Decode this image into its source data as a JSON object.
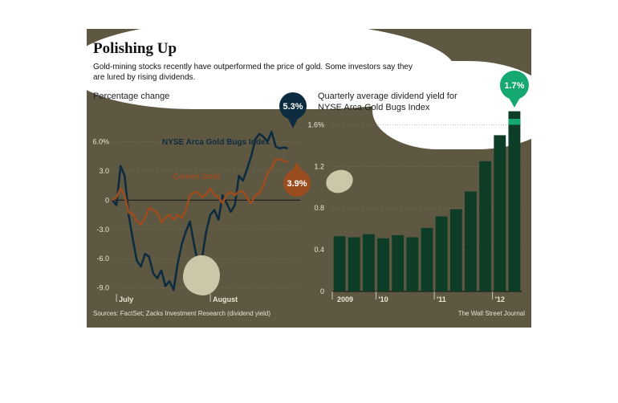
{
  "title": "Polishing Up",
  "subtitle_line1": "Gold-mining stocks recently have outperformed the price of gold. Some investors say they",
  "subtitle_line2": "are lured by rising dividends.",
  "source": "Sources: FactSet; Zacks Investment Research (dividend yield)",
  "credit": "The Wall Street Journal",
  "colors": {
    "background": "#5e5843",
    "gold_bugs": "#0e2c3f",
    "comex_gold": "#9c4d1f",
    "bars": "#0d3d27",
    "highlight_bar": "#15a870",
    "text_light": "#e8e3d0"
  },
  "chart_data": [
    {
      "type": "line",
      "ylabel": "Percentage change",
      "ylim": [
        -9.6,
        8.5
      ],
      "yticks": [
        6.0,
        3.0,
        0,
        -3.0,
        -6.0,
        -9.0
      ],
      "ytick_labels": [
        "6.0%",
        "3.0",
        "0",
        "-3.0",
        "-6.0",
        "-9.0"
      ],
      "xtick_labels": [
        "July",
        "August"
      ],
      "xtick_positions": [
        1,
        24
      ],
      "xlim": [
        0,
        46
      ],
      "series": [
        {
          "name": "NYSE Arca Gold Bugs Index",
          "end_label": "5.3%",
          "x": [
            0,
            1,
            2,
            3,
            4,
            5,
            6,
            7,
            8,
            9,
            10,
            11,
            12,
            13,
            14,
            15,
            16,
            17,
            18,
            19,
            20,
            21,
            22,
            23,
            24,
            25,
            26,
            27,
            28,
            29,
            30,
            31,
            32,
            33,
            34,
            35,
            36,
            37,
            38,
            39,
            40,
            41,
            42,
            43
          ],
          "values": [
            0.0,
            -0.5,
            3.5,
            2.5,
            -1.5,
            -4.0,
            -6.2,
            -6.8,
            -5.5,
            -5.8,
            -7.5,
            -8.0,
            -7.2,
            -8.8,
            -8.3,
            -9.2,
            -6.5,
            -4.5,
            -3.2,
            -2.2,
            -4.5,
            -6.5,
            -5.8,
            -3.2,
            -1.5,
            -1.0,
            -2.0,
            0.5,
            -0.3,
            -1.2,
            -0.5,
            2.5,
            2.0,
            3.2,
            4.5,
            6.2,
            6.8,
            6.5,
            6.0,
            7.0,
            5.5,
            5.3,
            5.4,
            5.3
          ]
        },
        {
          "name": "Comex Gold",
          "end_label": "3.9%",
          "x": [
            0,
            1,
            2,
            3,
            4,
            5,
            6,
            7,
            8,
            9,
            10,
            11,
            12,
            13,
            14,
            15,
            16,
            17,
            18,
            19,
            20,
            21,
            22,
            23,
            24,
            25,
            26,
            27,
            28,
            29,
            30,
            31,
            32,
            33,
            34,
            35,
            36,
            37,
            38,
            39,
            40,
            41,
            42,
            43
          ],
          "values": [
            0.0,
            0.3,
            1.2,
            0.5,
            -1.3,
            -1.4,
            -2.2,
            -2.5,
            -1.8,
            -0.8,
            -1.0,
            -1.3,
            -2.3,
            -1.8,
            -1.5,
            -2.0,
            -1.5,
            -1.8,
            -1.0,
            0.5,
            0.8,
            0.8,
            0.3,
            0.6,
            1.2,
            0.5,
            0.3,
            -0.3,
            0.6,
            0.8,
            0.5,
            0.9,
            0.9,
            0.2,
            -0.3,
            0.5,
            0.7,
            1.5,
            2.8,
            3.3,
            4.2,
            4.2,
            4.0,
            3.9
          ]
        }
      ],
      "annotation_zero_line": true
    },
    {
      "type": "bar",
      "title": "Quarterly average dividend yield for NYSE Arca Gold Bugs Index",
      "ylim": [
        0,
        1.75
      ],
      "yticks": [
        0,
        0.4,
        0.8,
        1.2,
        1.6
      ],
      "ytick_labels": [
        "0",
        "0.4",
        "0.8",
        "1.2",
        "1.6%"
      ],
      "xtick_labels": [
        "2009",
        "'10",
        "'11",
        "'12"
      ],
      "xtick_after_index": [
        0,
        2,
        6,
        10
      ],
      "values": [
        0.53,
        0.52,
        0.55,
        0.51,
        0.54,
        0.52,
        0.61,
        0.72,
        0.79,
        0.96,
        1.25,
        1.5,
        1.73
      ],
      "last_label": "1.7%"
    }
  ]
}
